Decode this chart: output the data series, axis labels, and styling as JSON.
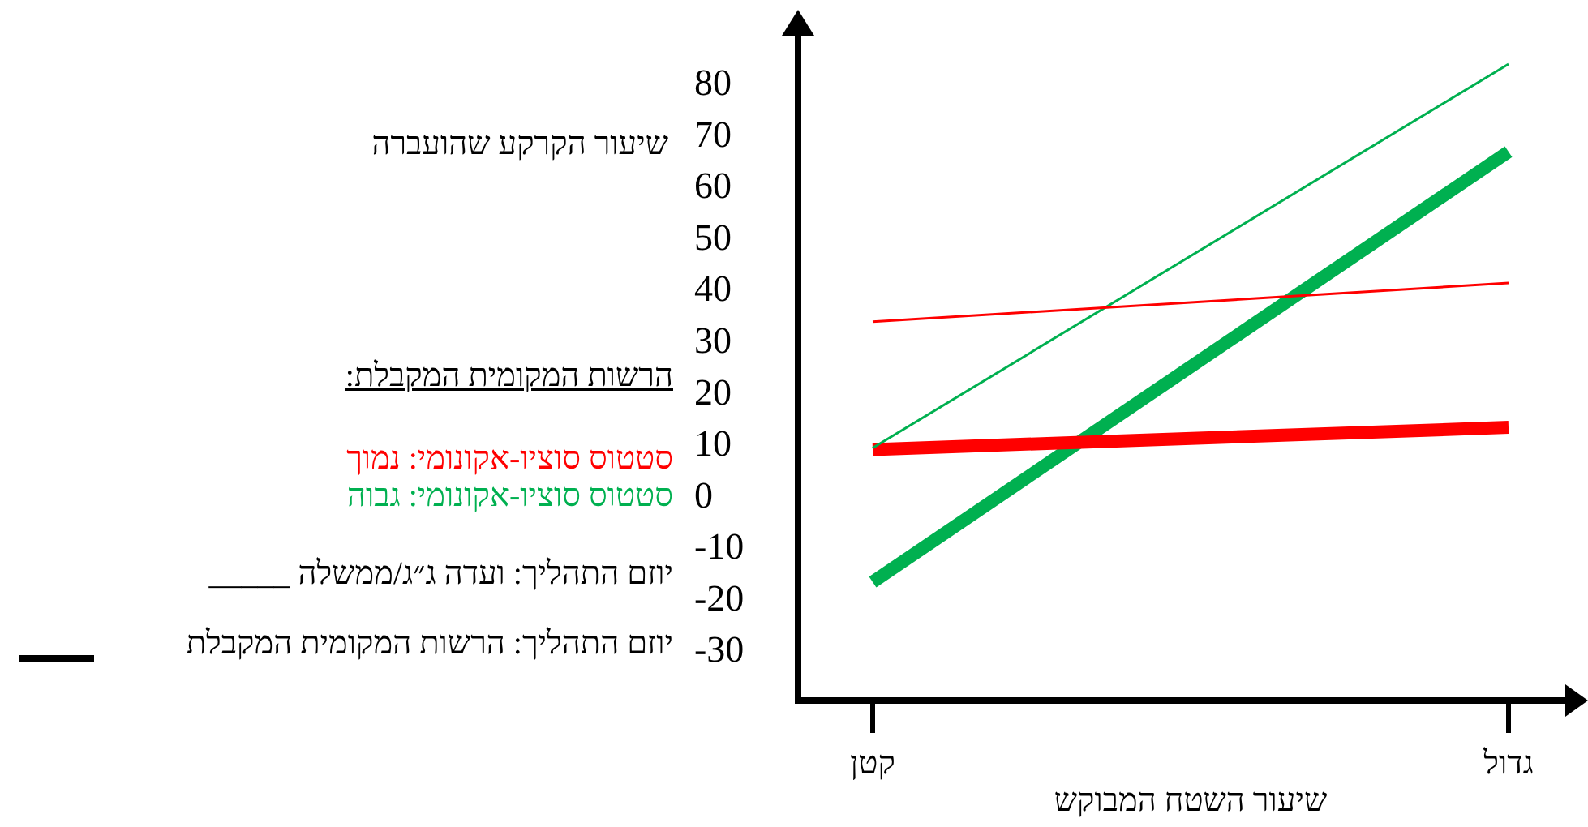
{
  "chart_data": {
    "type": "line",
    "ylabel": "שיעור הקרקע שהועברה",
    "xlabel": "שיעור השטח המבוקש",
    "categories": [
      "קטן",
      "גדול"
    ],
    "ylim": [
      -40,
      89
    ],
    "yticks": [
      80,
      70,
      60,
      50,
      40,
      30,
      20,
      10,
      0,
      -10,
      -20,
      -30
    ],
    "grid": false,
    "series": [
      {
        "color": "#00b050",
        "values": [
          9,
          83.5
        ]
      },
      {
        "color": "#ff0000",
        "values": [
          33.5,
          41
        ]
      },
      {
        "color": "#00b050",
        "values": [
          -17,
          66.5
        ]
      },
      {
        "color": "#ff0000",
        "values": [
          8.7,
          13
        ]
      }
    ],
    "annotations": [
      "הרשות המקומית המקבלת:",
      "סטטוס סוציו-אקונומי: נמוך",
      "סטטוס סוציו-אקונומי: גבוה",
      "יוזם התהליך: ועדה ג״ג/ממשלה _____",
      "יוזם התהליך: הרשות המקומית המקבלת"
    ]
  }
}
